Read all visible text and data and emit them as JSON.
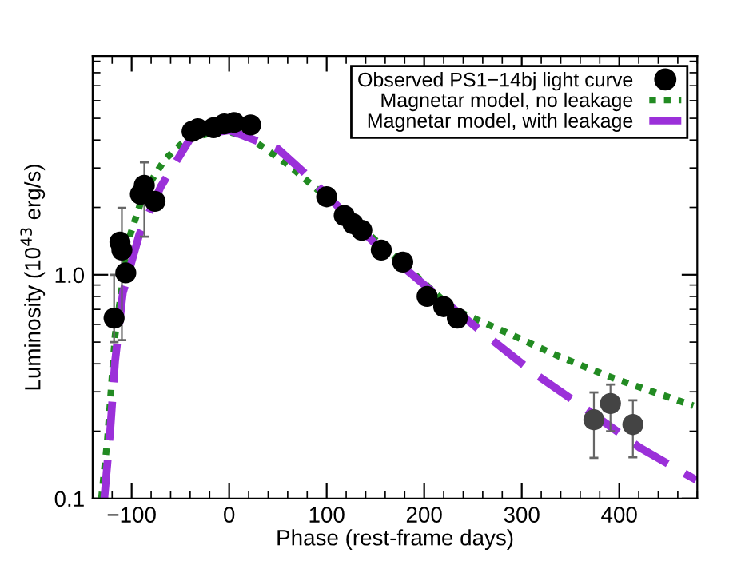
{
  "chart_data": {
    "type": "line",
    "xlabel": "Phase (rest-frame days)",
    "ylabel": "Luminosity (10$^{43}$ erg/s)",
    "log": "y",
    "xlim": [
      -140,
      480
    ],
    "xticks": [
      {
        "value": -100,
        "label": "−100"
      },
      0,
      100,
      200,
      300,
      400
    ],
    "ylim": [
      0.1,
      9.5
    ],
    "yticks": [
      {
        "value": 0.1,
        "label": "0.1"
      },
      {
        "value": 1,
        "label": "1.0"
      }
    ],
    "grid": false,
    "legend": "top right",
    "series": [
      {
        "name": "Observed PS1−14bj light curve",
        "type": "scatter",
        "marker": "circle",
        "color": "#000000",
        "colors": [
          "#000000",
          "#000000",
          "#000000",
          "#000000",
          "#000000",
          "#000000",
          "#000000",
          "#000000",
          "#000000",
          "#000000",
          "#000000",
          "#000000",
          "#000000",
          "#000000",
          "#000000",
          "#000000",
          "#000000",
          "#000000",
          "#000000",
          "#000000",
          "#000000",
          "#000000",
          "#444444",
          "#444444",
          "#444444"
        ],
        "x": [
          -118,
          -112,
          -110,
          -106,
          -91,
          -87,
          -76,
          -38,
          -32,
          -16,
          -5,
          5,
          22,
          100,
          118,
          127,
          136,
          156,
          178,
          203,
          220,
          234,
          374,
          391,
          414
        ],
        "values": [
          0.64,
          1.4,
          1.29,
          1.02,
          2.29,
          2.51,
          2.13,
          4.37,
          4.49,
          4.54,
          4.72,
          4.79,
          4.67,
          2.23,
          1.84,
          1.69,
          1.58,
          1.29,
          1.14,
          0.8,
          0.72,
          0.64,
          0.225,
          0.266,
          0.214
        ],
        "errors": [
          [
            0.5,
            1.0
          ],
          null,
          [
            0.51,
            1.99
          ],
          null,
          null,
          [
            1.48,
            3.18
          ],
          null,
          null,
          null,
          null,
          null,
          null,
          null,
          null,
          null,
          null,
          null,
          null,
          null,
          null,
          null,
          null,
          [
            0.152,
            0.298
          ],
          [
            0.2,
            0.323
          ],
          [
            0.153,
            0.275
          ]
        ]
      },
      {
        "name": "Magnetar model, no leakage",
        "line_style": "dotted",
        "color": "#228b22",
        "x": [
          -131,
          -125,
          -117,
          -103,
          -87,
          -66,
          -43,
          -5,
          22,
          61,
          93,
          181,
          230,
          285,
          339,
          394,
          476
        ],
        "values": [
          0.1,
          0.18,
          0.535,
          1.44,
          2.35,
          3.27,
          4.06,
          4.42,
          4.06,
          3.09,
          2.35,
          1.09,
          0.7,
          0.55,
          0.43,
          0.345,
          0.26
        ]
      },
      {
        "name": "Magnetar model, with leakage",
        "line_style": "dashed",
        "color": "#9b30d9",
        "x": [
          -128,
          -122,
          -117,
          -109,
          -92,
          -70,
          -38,
          0,
          50,
          77,
          148,
          203,
          257,
          312,
          367,
          421,
          479
        ],
        "values": [
          0.1,
          0.2,
          0.41,
          0.83,
          1.52,
          2.48,
          4.18,
          4.42,
          3.65,
          2.86,
          1.4,
          0.88,
          0.565,
          0.365,
          0.249,
          0.169,
          0.121
        ]
      }
    ]
  }
}
